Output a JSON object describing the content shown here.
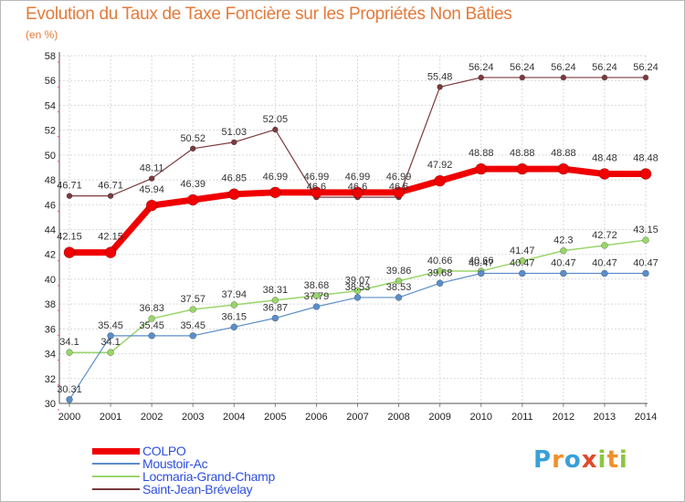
{
  "title": "Evolution du Taux de Taxe Foncière sur les Propriétés Non Bâties",
  "unit": "(en %)",
  "brand": {
    "letters": [
      "P",
      "r",
      "o",
      "x",
      "i",
      "t",
      "i"
    ],
    "colors": [
      "#3aa0d8",
      "#f0902a",
      "#3aa0d8",
      "#e04a2a",
      "#8cc63f",
      "#f0902a",
      "#8cc63f"
    ]
  },
  "chart_data": {
    "type": "line",
    "title": "Evolution du Taux de Taxe Foncière sur les Propriétés Non Bâties",
    "ylabel": "(en %)",
    "xlabel": "",
    "ylim": [
      30,
      58
    ],
    "yticks": [
      30,
      32,
      34,
      36,
      38,
      40,
      42,
      44,
      46,
      48,
      50,
      52,
      54,
      56,
      58
    ],
    "categories": [
      "2000",
      "2001",
      "2002",
      "2003",
      "2004",
      "2005",
      "2006",
      "2007",
      "2008",
      "2009",
      "2010",
      "2011",
      "2012",
      "2013",
      "2014"
    ],
    "grid": true,
    "series": [
      {
        "name": "Saint-Jean-Brévelay",
        "color": "#7a3a3e",
        "lineWidth": 1.2,
        "marker": 3,
        "values": [
          46.71,
          46.71,
          48.11,
          50.52,
          51.03,
          52.05,
          46.6,
          46.6,
          46.6,
          55.48,
          56.24,
          56.24,
          56.24,
          56.24,
          56.24
        ],
        "labels": [
          "46.71",
          "46.71",
          "48.11",
          "50.52",
          "51.03",
          "52.05",
          "46.6",
          "46.6",
          "46.6",
          "55.48",
          "56.24",
          "56.24",
          "56.24",
          "56.24",
          "56.24"
        ]
      },
      {
        "name": "Locmaria-Grand-Champ",
        "color": "#99d66a",
        "lineWidth": 1.5,
        "marker": 3.5,
        "values": [
          34.1,
          34.1,
          36.83,
          37.57,
          37.94,
          38.31,
          38.68,
          39.07,
          39.86,
          40.66,
          40.66,
          41.47,
          42.3,
          42.72,
          43.15
        ],
        "labels": [
          "34.1",
          "34.1",
          "36.83",
          "37.57",
          "37.94",
          "38.31",
          "38.68",
          "39.07",
          "39.86",
          "40.66",
          "40.66",
          "41.47",
          "42.3",
          "42.72",
          "43.15"
        ]
      },
      {
        "name": "Moustoir-Ac",
        "color": "#5b8ec9",
        "lineWidth": 1.2,
        "marker": 3.5,
        "values": [
          30.31,
          35.45,
          35.45,
          35.45,
          36.15,
          36.87,
          37.79,
          38.53,
          38.53,
          39.68,
          40.47,
          40.47,
          40.47,
          40.47,
          40.47
        ],
        "labels": [
          "30.31",
          "35.45",
          "35.45",
          "35.45",
          "36.15",
          "36.87",
          "37.79",
          "38.53",
          "38.53",
          "39.68",
          "40.47",
          "40.47",
          "40.47",
          "40.47",
          "40.47"
        ]
      },
      {
        "name": "COLPO",
        "color": "#f00000",
        "lineWidth": 7,
        "marker": 6,
        "values": [
          42.15,
          42.15,
          45.94,
          46.39,
          46.85,
          46.99,
          46.99,
          46.99,
          46.99,
          47.92,
          48.88,
          48.88,
          48.88,
          48.48,
          48.48
        ],
        "labels": [
          "42.15",
          "42.15",
          "45.94",
          "46.39",
          "46.85",
          "46.99",
          "46.99",
          "46.99",
          "46.99",
          "47.92",
          "48.88",
          "48.88",
          "48.88",
          "48.48",
          "48.48"
        ]
      }
    ]
  },
  "legend": [
    {
      "label": "COLPO",
      "color": "#f00000",
      "thickness": 7
    },
    {
      "label": "Moustoir-Ac",
      "color": "#5b8ec9",
      "thickness": 2
    },
    {
      "label": "Locmaria-Grand-Champ",
      "color": "#99d66a",
      "thickness": 2
    },
    {
      "label": "Saint-Jean-Brévelay",
      "color": "#7a3a3e",
      "thickness": 2
    }
  ]
}
